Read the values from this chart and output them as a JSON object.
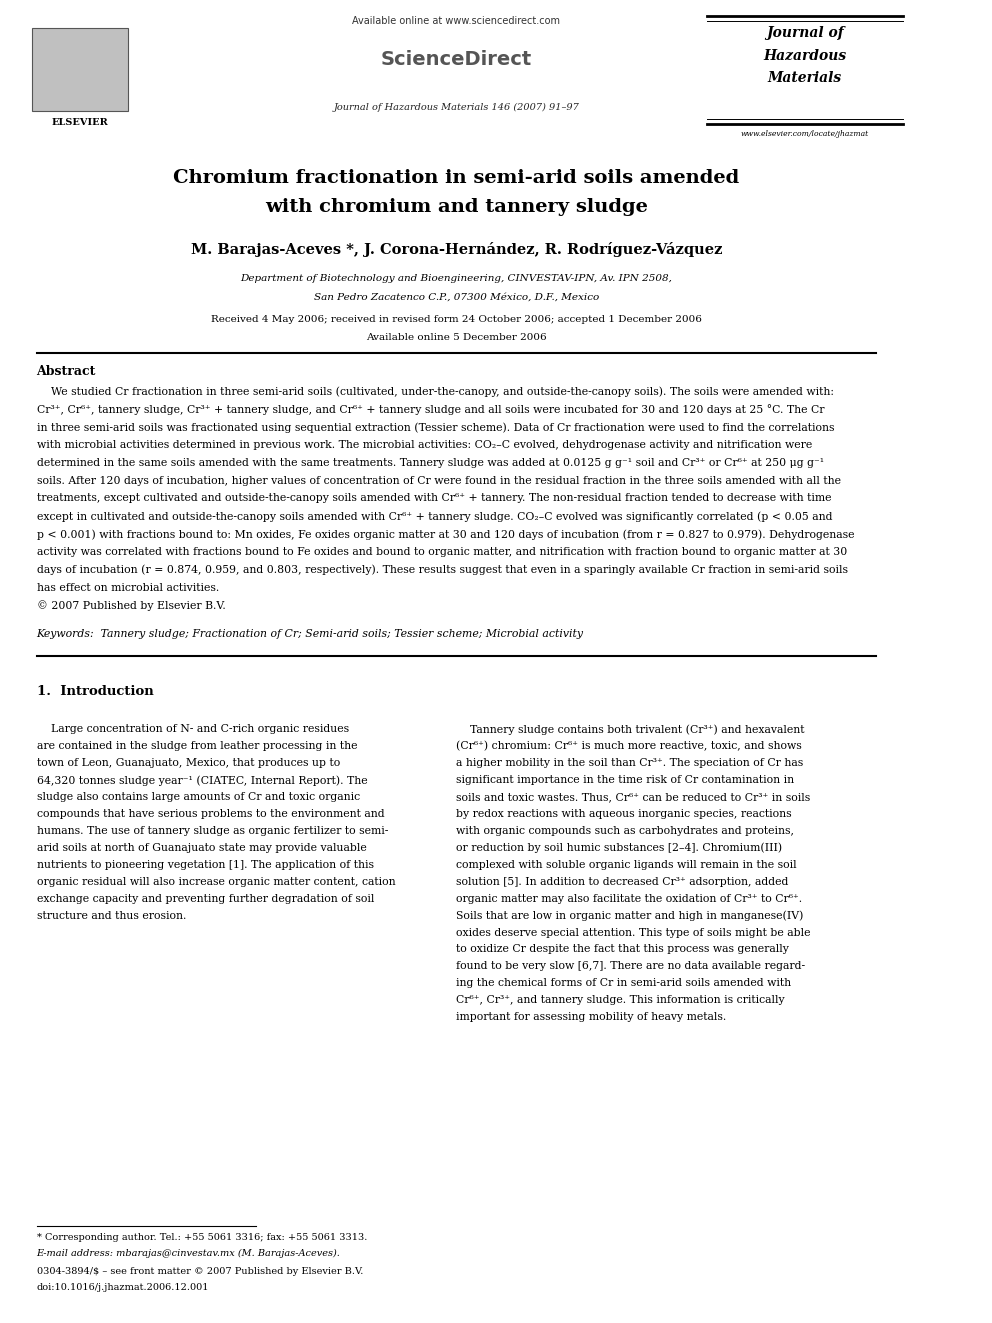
{
  "page_width": 9.92,
  "page_height": 13.23,
  "background_color": "#ffffff",
  "header": {
    "available_online_text": "Available online at www.sciencedirect.com",
    "journal_info_text": "Journal of Hazardous Materials 146 (2007) 91–97",
    "journal_name_line1": "Journal of",
    "journal_name_line2": "Hazardous",
    "journal_name_line3": "Materials",
    "website": "www.elsevier.com/locate/jhazmat",
    "elsevier_text": "ELSEVIER"
  },
  "title_line1": "Chromium fractionation in semi-arid soils amended",
  "title_line2": "with chromium and tannery sludge",
  "authors": "M. Barajas-Aceves *, J. Corona-Hernández, R. Rodríguez-Vázquez",
  "affiliation_line1": "Department of Biotechnology and Bioengineering, CINVESTAV-IPN, Av. IPN 2508,",
  "affiliation_line2": "San Pedro Zacatenco C.P., 07300 México, D.F., Mexico",
  "received_text": "Received 4 May 2006; received in revised form 24 October 2006; accepted 1 December 2006",
  "available_online": "Available online 5 December 2006",
  "abstract_header": "Abstract",
  "abstract_lines": [
    "    We studied Cr fractionation in three semi-arid soils (cultivated, under-the-canopy, and outside-the-canopy soils). The soils were amended with:",
    "Cr³⁺, Cr⁶⁺, tannery sludge, Cr³⁺ + tannery sludge, and Cr⁶⁺ + tannery sludge and all soils were incubated for 30 and 120 days at 25 °C. The Cr",
    "in three semi-arid soils was fractionated using sequential extraction (Tessier scheme). Data of Cr fractionation were used to find the correlations",
    "with microbial activities determined in previous work. The microbial activities: CO₂–C evolved, dehydrogenase activity and nitrification were",
    "determined in the same soils amended with the same treatments. Tannery sludge was added at 0.0125 g g⁻¹ soil and Cr³⁺ or Cr⁶⁺ at 250 μg g⁻¹",
    "soils. After 120 days of incubation, higher values of concentration of Cr were found in the residual fraction in the three soils amended with all the",
    "treatments, except cultivated and outside-the-canopy soils amended with Cr⁶⁺ + tannery. The non-residual fraction tended to decrease with time",
    "except in cultivated and outside-the-canopy soils amended with Cr⁶⁺ + tannery sludge. CO₂–C evolved was significantly correlated (p < 0.05 and",
    "p < 0.001) with fractions bound to: Mn oxides, Fe oxides organic matter at 30 and 120 days of incubation (from r = 0.827 to 0.979). Dehydrogenase",
    "activity was correlated with fractions bound to Fe oxides and bound to organic matter, and nitrification with fraction bound to organic matter at 30",
    "days of incubation (r = 0.874, 0.959, and 0.803, respectively). These results suggest that even in a sparingly available Cr fraction in semi-arid soils",
    "has effect on microbial activities.",
    "© 2007 Published by Elsevier B.V."
  ],
  "keywords_text": "Keywords:  Tannery sludge; Fractionation of Cr; Semi-arid soils; Tessier scheme; Microbial activity",
  "section1_header": "1.  Introduction",
  "intro_left": [
    "    Large concentration of N- and C-rich organic residues",
    "are contained in the sludge from leather processing in the",
    "town of Leon, Guanajuato, Mexico, that produces up to",
    "64,320 tonnes sludge year⁻¹ (CIATEC, Internal Report). The",
    "sludge also contains large amounts of Cr and toxic organic",
    "compounds that have serious problems to the environment and",
    "humans. The use of tannery sludge as organic fertilizer to semi-",
    "arid soils at north of Guanajuato state may provide valuable",
    "nutrients to pioneering vegetation [1]. The application of this",
    "organic residual will also increase organic matter content, cation",
    "exchange capacity and preventing further degradation of soil",
    "structure and thus erosion."
  ],
  "intro_right": [
    "    Tannery sludge contains both trivalent (Cr³⁺) and hexavalent",
    "(Cr⁶⁺) chromium: Cr⁶⁺ is much more reactive, toxic, and shows",
    "a higher mobility in the soil than Cr³⁺. The speciation of Cr has",
    "significant importance in the time risk of Cr contamination in",
    "soils and toxic wastes. Thus, Cr⁶⁺ can be reduced to Cr³⁺ in soils",
    "by redox reactions with aqueous inorganic species, reactions",
    "with organic compounds such as carbohydrates and proteins,",
    "or reduction by soil humic substances [2–4]. Chromium(III)",
    "complexed with soluble organic ligands will remain in the soil",
    "solution [5]. In addition to decreased Cr³⁺ adsorption, added",
    "organic matter may also facilitate the oxidation of Cr³⁺ to Cr⁶⁺.",
    "Soils that are low in organic matter and high in manganese(IV)",
    "oxides deserve special attention. This type of soils might be able",
    "to oxidize Cr despite the fact that this process was generally",
    "found to be very slow [6,7]. There are no data available regard-",
    "ing the chemical forms of Cr in semi-arid soils amended with",
    "Cr⁶⁺, Cr³⁺, and tannery sludge. This information is critically",
    "important for assessing mobility of heavy metals."
  ],
  "footnote_line1": "* Corresponding author. Tel.: +55 5061 3316; fax: +55 5061 3313.",
  "footnote_line2": "E-mail address: mbarajas@cinvestav.mx (M. Barajas-Aceves).",
  "footnote_line3": "0304-3894/$ – see front matter © 2007 Published by Elsevier B.V.",
  "footnote_line4": "doi:10.1016/j.jhazmat.2006.12.001"
}
